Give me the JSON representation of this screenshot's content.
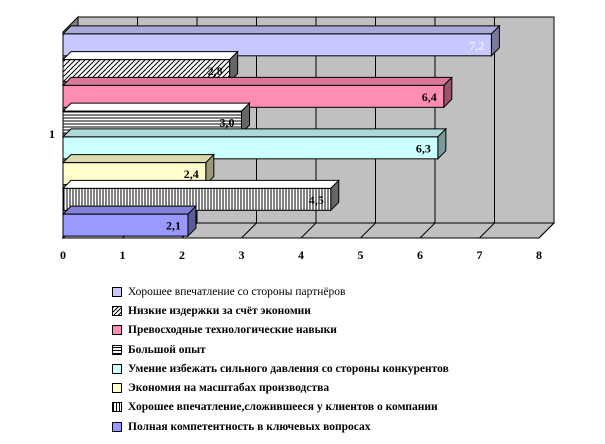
{
  "chart_data": {
    "type": "bar",
    "orientation": "horizontal",
    "three_d": true,
    "category": "1",
    "xlim": [
      0,
      8
    ],
    "x_ticks": [
      "0",
      "1",
      "2",
      "3",
      "4",
      "5",
      "6",
      "7",
      "8"
    ],
    "grid": true,
    "legend_position": "bottom",
    "series": [
      {
        "name": "Хорошее впечатление со стороны партнёров",
        "value": 7.2,
        "label": "7,2",
        "color": "#c8c8ff",
        "pattern": "solid",
        "label_bold": false,
        "label_color": "#ffffff"
      },
      {
        "name": "Низкие издержки за счёт экономии",
        "value": 2.8,
        "label": "2,8",
        "color": "#ffffff",
        "pattern": "diagonal",
        "label_bold": true,
        "label_color": "#000000"
      },
      {
        "name": "Превосходные технологические навыки",
        "value": 6.4,
        "label": "6,4",
        "color": "#ff8cb4",
        "pattern": "solid",
        "label_bold": true,
        "label_color": "#000000"
      },
      {
        "name": "Большой опыт",
        "value": 3.0,
        "label": "3,0",
        "color": "#ffffff",
        "pattern": "horizontal",
        "label_bold": true,
        "label_color": "#000000"
      },
      {
        "name": "Умение избежать сильного давления со стороны конкурентов",
        "value": 6.3,
        "label": "6,3",
        "color": "#ccffff",
        "pattern": "solid",
        "label_bold": true,
        "label_color": "#000000"
      },
      {
        "name": "Экономия на масштабах производства",
        "value": 2.4,
        "label": "2,4",
        "color": "#ffffcc",
        "pattern": "solid",
        "label_bold": true,
        "label_color": "#000000"
      },
      {
        "name": "Хорошее впечатление,сложившееся у клиентов о компании",
        "value": 4.5,
        "label": "4,5",
        "color": "#ffffff",
        "pattern": "vertical",
        "label_bold": true,
        "label_color": "#000000"
      },
      {
        "name": "Полная компетентность в ключевых вопросах",
        "value": 2.1,
        "label": "2,1",
        "color": "#9999ff",
        "pattern": "solid",
        "label_bold": true,
        "label_color": "#000000"
      }
    ]
  }
}
